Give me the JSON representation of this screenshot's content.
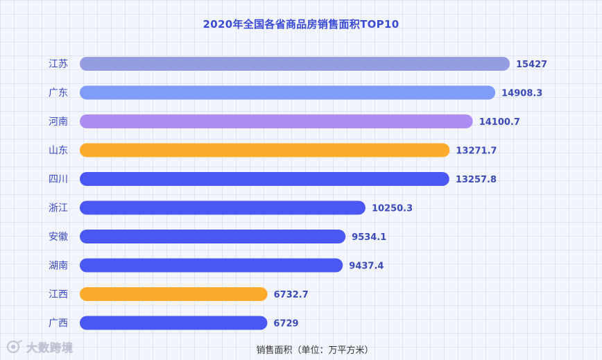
{
  "chart_data": {
    "type": "bar",
    "orientation": "horizontal",
    "title": "2020年全国各省商品房销售面积TOP10",
    "xlabel": "销售面积（单位：万平方米）",
    "ylabel": "",
    "categories": [
      "江苏",
      "广东",
      "河南",
      "山东",
      "四川",
      "浙江",
      "安徽",
      "湖南",
      "江西",
      "广西"
    ],
    "values": [
      15427,
      14908.3,
      14100.7,
      13271.7,
      13257.8,
      10250.3,
      9534.1,
      9437.4,
      6732.7,
      6729
    ],
    "value_labels": [
      "15427",
      "14908.3",
      "14100.7",
      "13271.7",
      "13257.8",
      "10250.3",
      "9534.1",
      "9437.4",
      "6732.7",
      "6729"
    ],
    "colors": [
      "#959cdf",
      "#7f9cf9",
      "#ad8df4",
      "#fcab2b",
      "#4a57f2",
      "#4a57f2",
      "#4a57f2",
      "#4a57f2",
      "#fcab2b",
      "#4a57f2"
    ],
    "xlim": [
      0,
      15427
    ],
    "grid": true,
    "legend": "none"
  },
  "watermark": {
    "text": "大数跨境"
  }
}
